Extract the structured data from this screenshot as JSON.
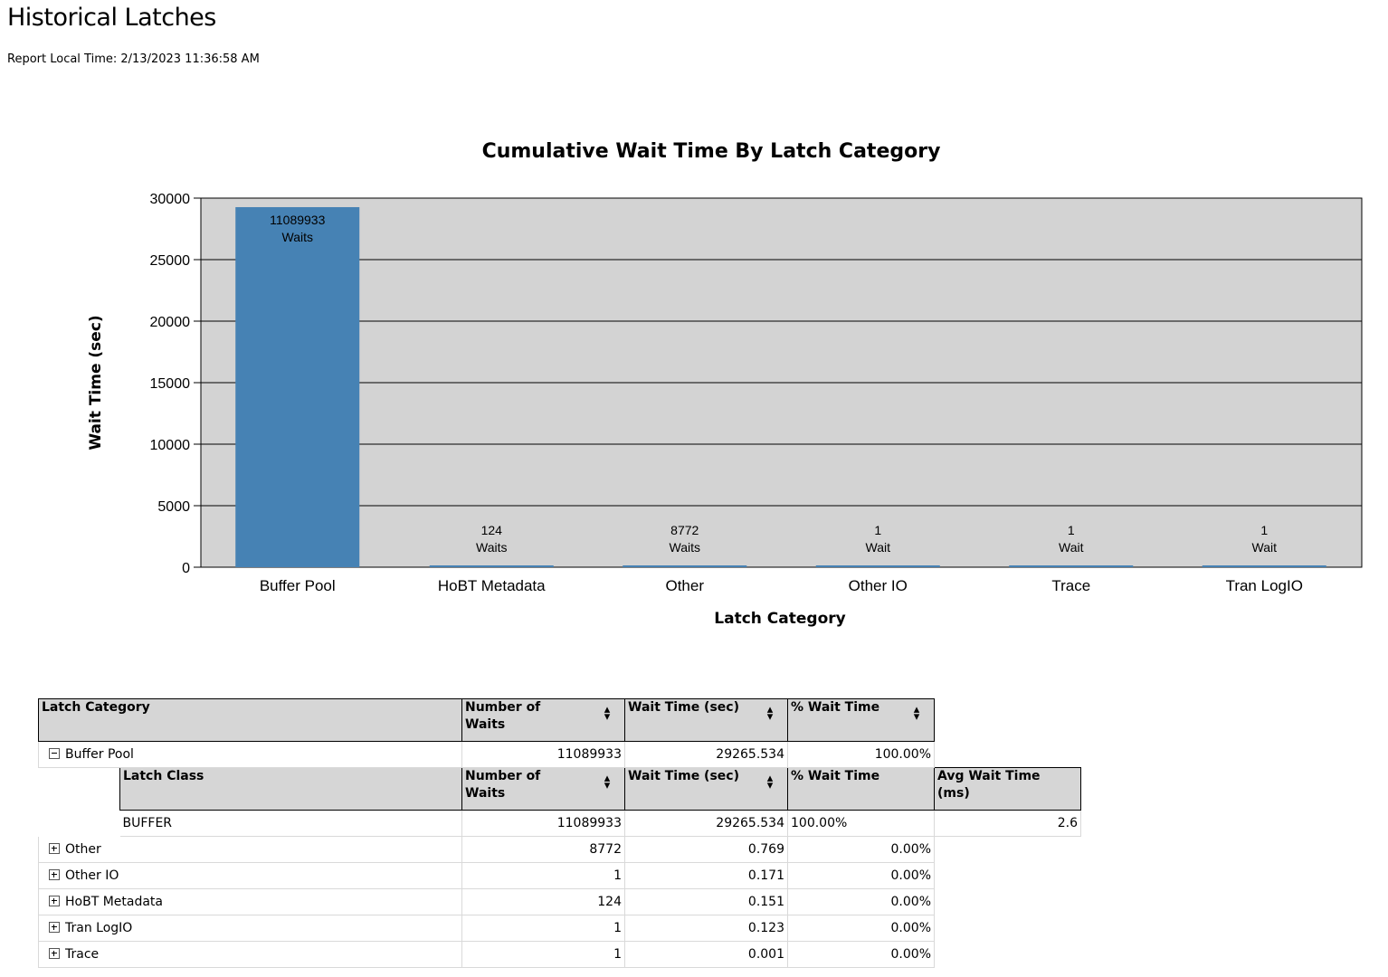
{
  "report": {
    "title": "Historical Latches",
    "time_label": "Report Local Time: 2/13/2023 11:36:58 AM"
  },
  "chart_data": {
    "type": "bar",
    "title": "Cumulative Wait Time By Latch Category",
    "xlabel": "Latch Category",
    "ylabel": "Wait Time (sec)",
    "ylim": [
      0,
      30000
    ],
    "yticks": [
      0,
      5000,
      10000,
      15000,
      20000,
      25000,
      30000
    ],
    "categories": [
      "Buffer Pool",
      "HoBT Metadata",
      "Other",
      "Other IO",
      "Trace",
      "Tran LogIO"
    ],
    "values": [
      29265.534,
      0.151,
      0.769,
      0.171,
      0.001,
      0.123
    ],
    "data_labels": [
      [
        "11089933",
        "Waits"
      ],
      [
        "124",
        "Waits"
      ],
      [
        "8772",
        "Waits"
      ],
      [
        "1",
        "Wait"
      ],
      [
        "1",
        "Wait"
      ],
      [
        "1",
        "Wait"
      ]
    ],
    "bar_color": "#4682b4",
    "plot_background": "#d3d3d3",
    "grid": true,
    "legend": "none"
  },
  "table": {
    "headers": {
      "category": "Latch Category",
      "waits_line1": "Number of",
      "waits_line2": "Waits",
      "wait_time": "Wait Time (sec)",
      "pct": "% Wait Time"
    },
    "sort_icon": "sort-arrows-icon",
    "expanded_row": {
      "category": "Buffer Pool",
      "waits": "11089933",
      "wait_time": "29265.534",
      "pct": "100.00%"
    },
    "sub_headers": {
      "class": "Latch Class",
      "waits_line1": "Number of",
      "waits_line2": "Waits",
      "wait_time": "Wait Time (sec)",
      "pct": "% Wait Time",
      "avg_line1": "Avg Wait Time",
      "avg_line2": "(ms)"
    },
    "sub_row": {
      "class": "BUFFER",
      "waits": "11089933",
      "wait_time": "29265.534",
      "pct": "100.00%",
      "avg": "2.6"
    },
    "rows": [
      {
        "category": "Other",
        "waits": "8772",
        "wait_time": "0.769",
        "pct": "0.00%"
      },
      {
        "category": "Other IO",
        "waits": "1",
        "wait_time": "0.171",
        "pct": "0.00%"
      },
      {
        "category": "HoBT Metadata",
        "waits": "124",
        "wait_time": "0.151",
        "pct": "0.00%"
      },
      {
        "category": "Tran LogIO",
        "waits": "1",
        "wait_time": "0.123",
        "pct": "0.00%"
      },
      {
        "category": "Trace",
        "waits": "1",
        "wait_time": "0.001",
        "pct": "0.00%"
      }
    ]
  }
}
